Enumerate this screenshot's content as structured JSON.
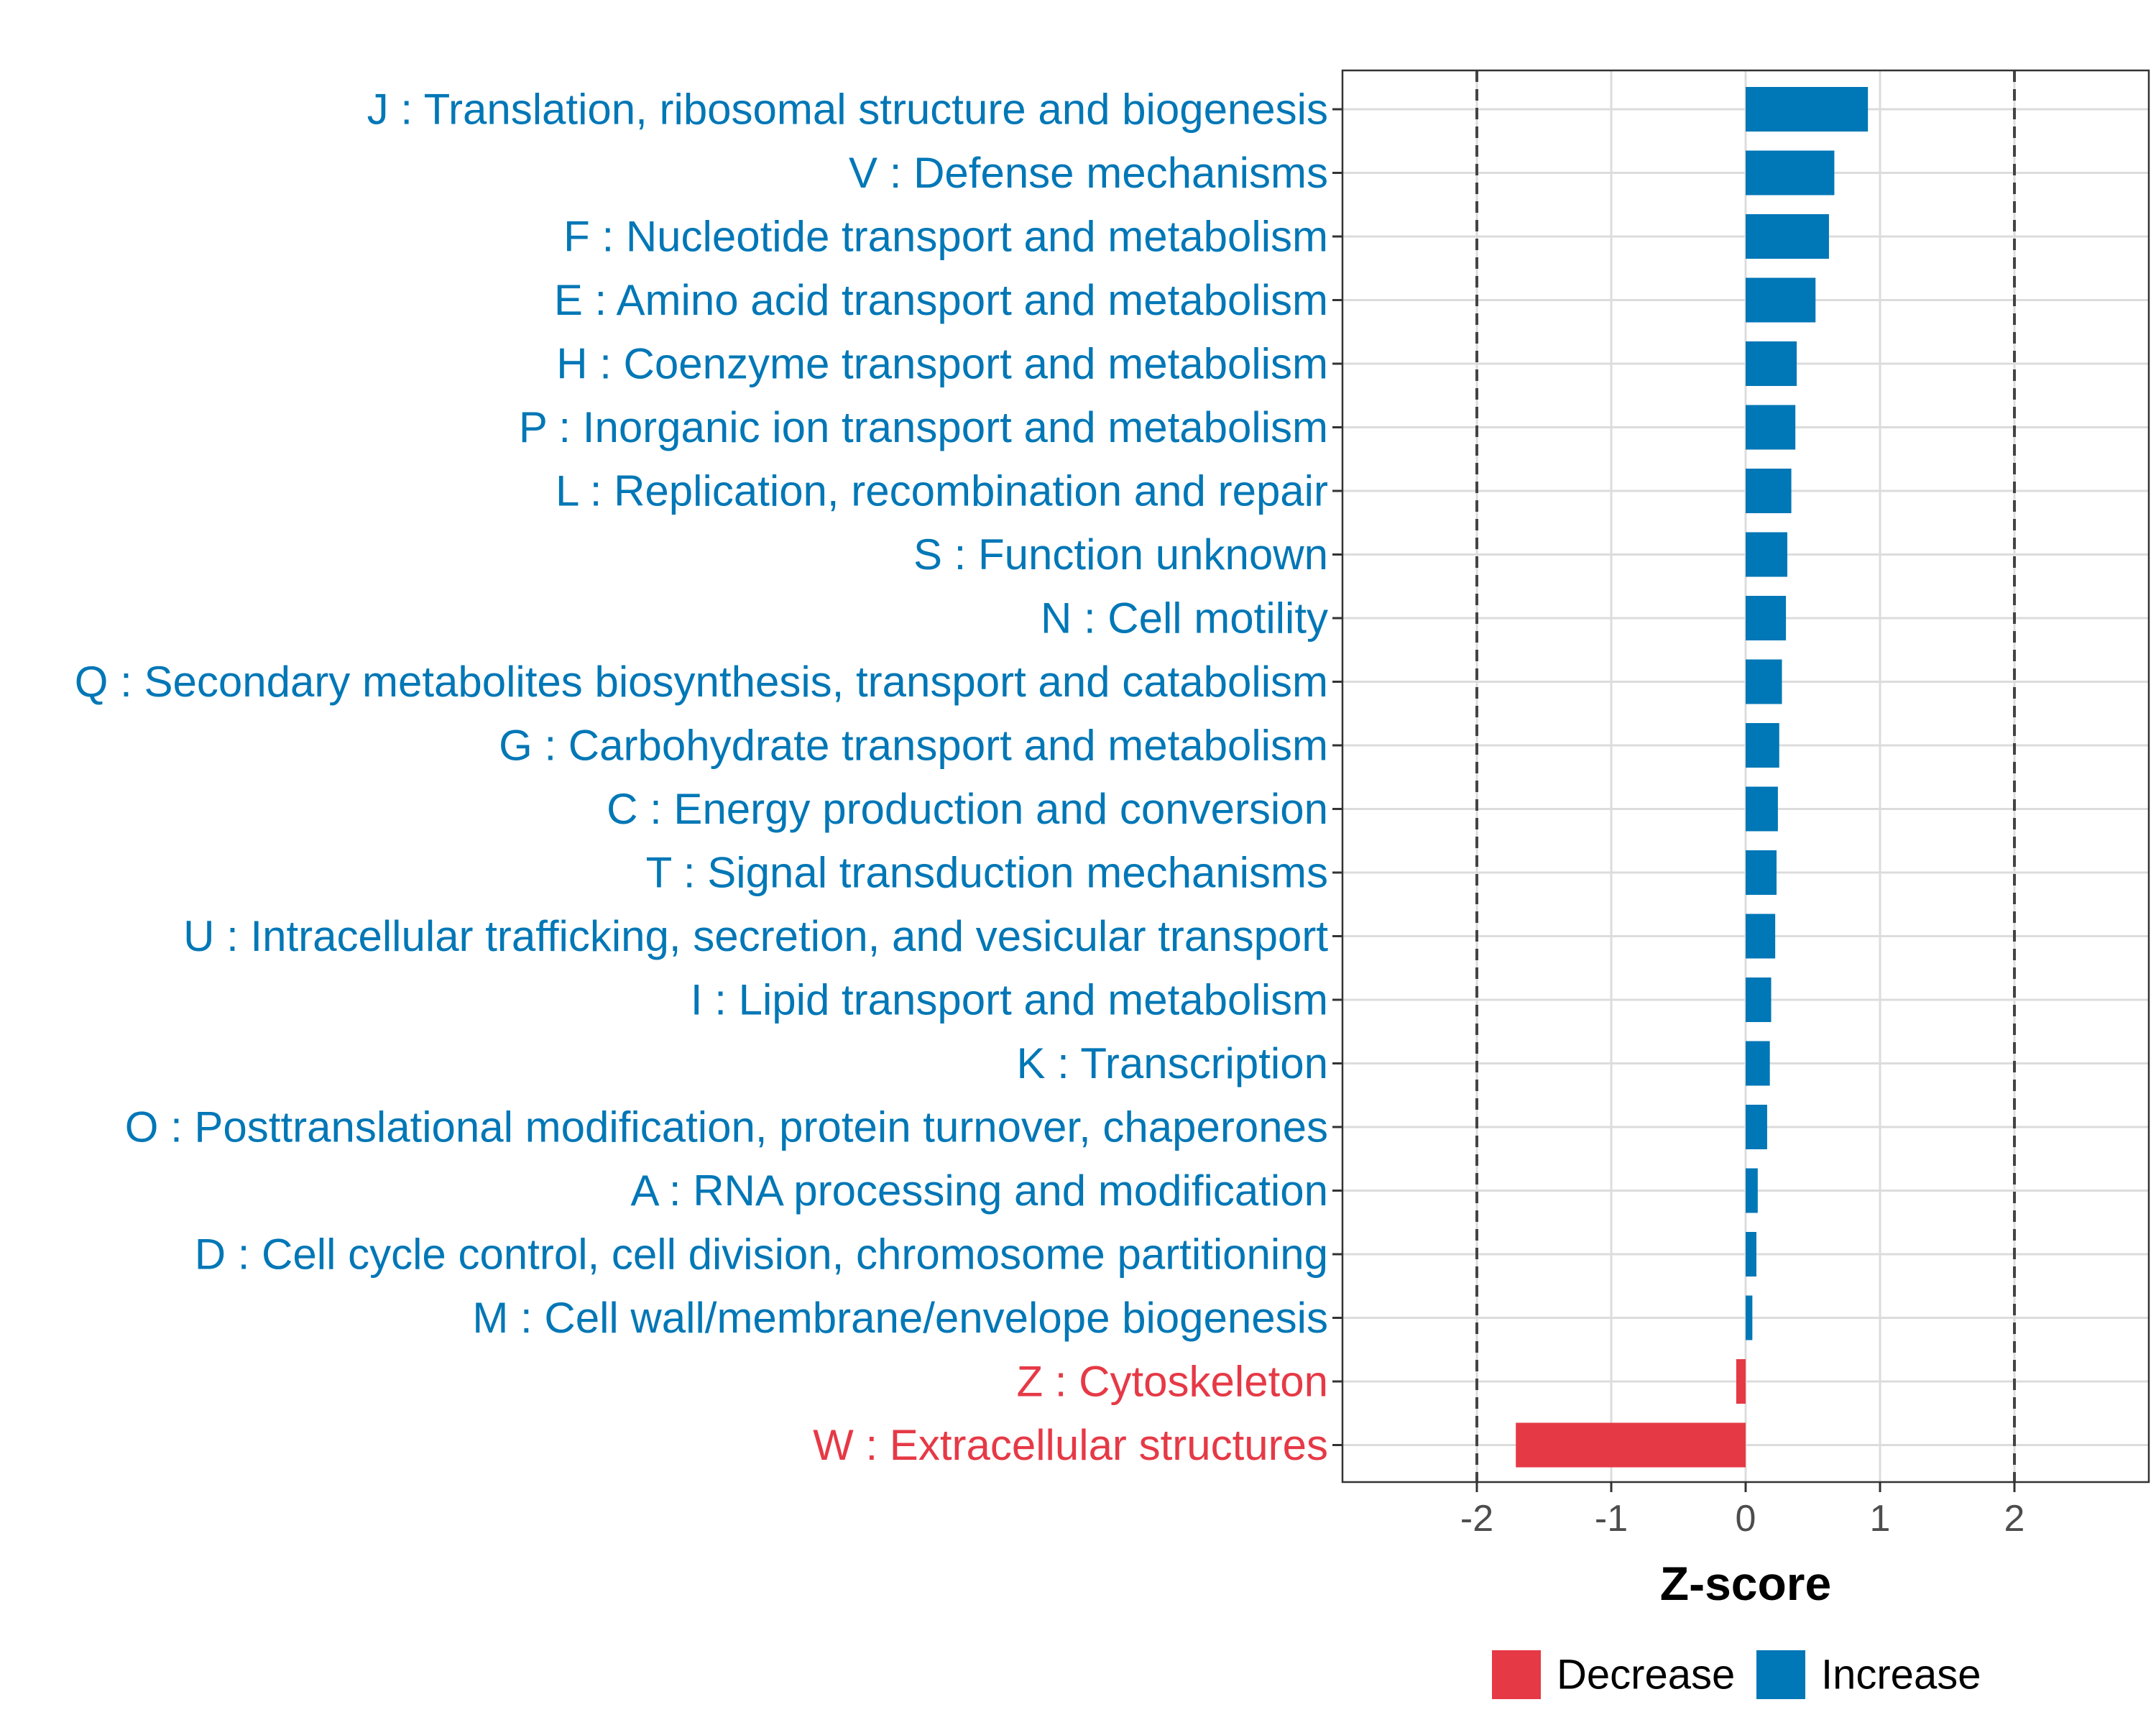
{
  "chart_data": {
    "type": "bar",
    "orientation": "horizontal",
    "xlabel": "Z-score",
    "ylabel": "",
    "xlim": [
      -3,
      3
    ],
    "xticks": [
      -2,
      -1,
      0,
      1,
      2
    ],
    "xtick_labels": [
      "-2",
      "-1",
      "0",
      "1",
      "2"
    ],
    "reference_lines": [
      -2,
      2
    ],
    "grid": true,
    "legend_position": "bottom",
    "colors": {
      "Decrease": "#E63946",
      "Increase": "#0077B6"
    },
    "legend": [
      {
        "name": "Decrease",
        "color": "#E63946"
      },
      {
        "name": "Increase",
        "color": "#0077B6"
      }
    ],
    "categories": [
      "J : Translation, ribosomal structure and biogenesis",
      "V : Defense mechanisms",
      "F : Nucleotide transport and metabolism",
      "E : Amino acid transport and metabolism",
      "H : Coenzyme transport and metabolism",
      "P : Inorganic ion transport and metabolism",
      "L : Replication, recombination and repair",
      "S : Function unknown",
      "N : Cell motility",
      "Q : Secondary metabolites biosynthesis, transport and catabolism",
      "G : Carbohydrate transport and metabolism",
      "C : Energy production and conversion",
      "T : Signal transduction mechanisms",
      "U : Intracellular trafficking, secretion, and vesicular transport",
      "I : Lipid transport and metabolism",
      "K : Transcription",
      "O : Posttranslational modification, protein turnover, chaperones",
      "A : RNA processing and modification",
      "D : Cell cycle control, cell division, chromosome partitioning",
      "M : Cell wall/membrane/envelope biogenesis",
      "Z : Cytoskeleton",
      "W : Extracellular structures"
    ],
    "values": [
      0.91,
      0.66,
      0.62,
      0.52,
      0.38,
      0.37,
      0.34,
      0.31,
      0.3,
      0.27,
      0.25,
      0.24,
      0.23,
      0.22,
      0.19,
      0.18,
      0.16,
      0.09,
      0.08,
      0.05,
      -0.07,
      -1.71
    ],
    "groups": [
      "Increase",
      "Increase",
      "Increase",
      "Increase",
      "Increase",
      "Increase",
      "Increase",
      "Increase",
      "Increase",
      "Increase",
      "Increase",
      "Increase",
      "Increase",
      "Increase",
      "Increase",
      "Increase",
      "Increase",
      "Increase",
      "Increase",
      "Increase",
      "Decrease",
      "Decrease"
    ]
  }
}
